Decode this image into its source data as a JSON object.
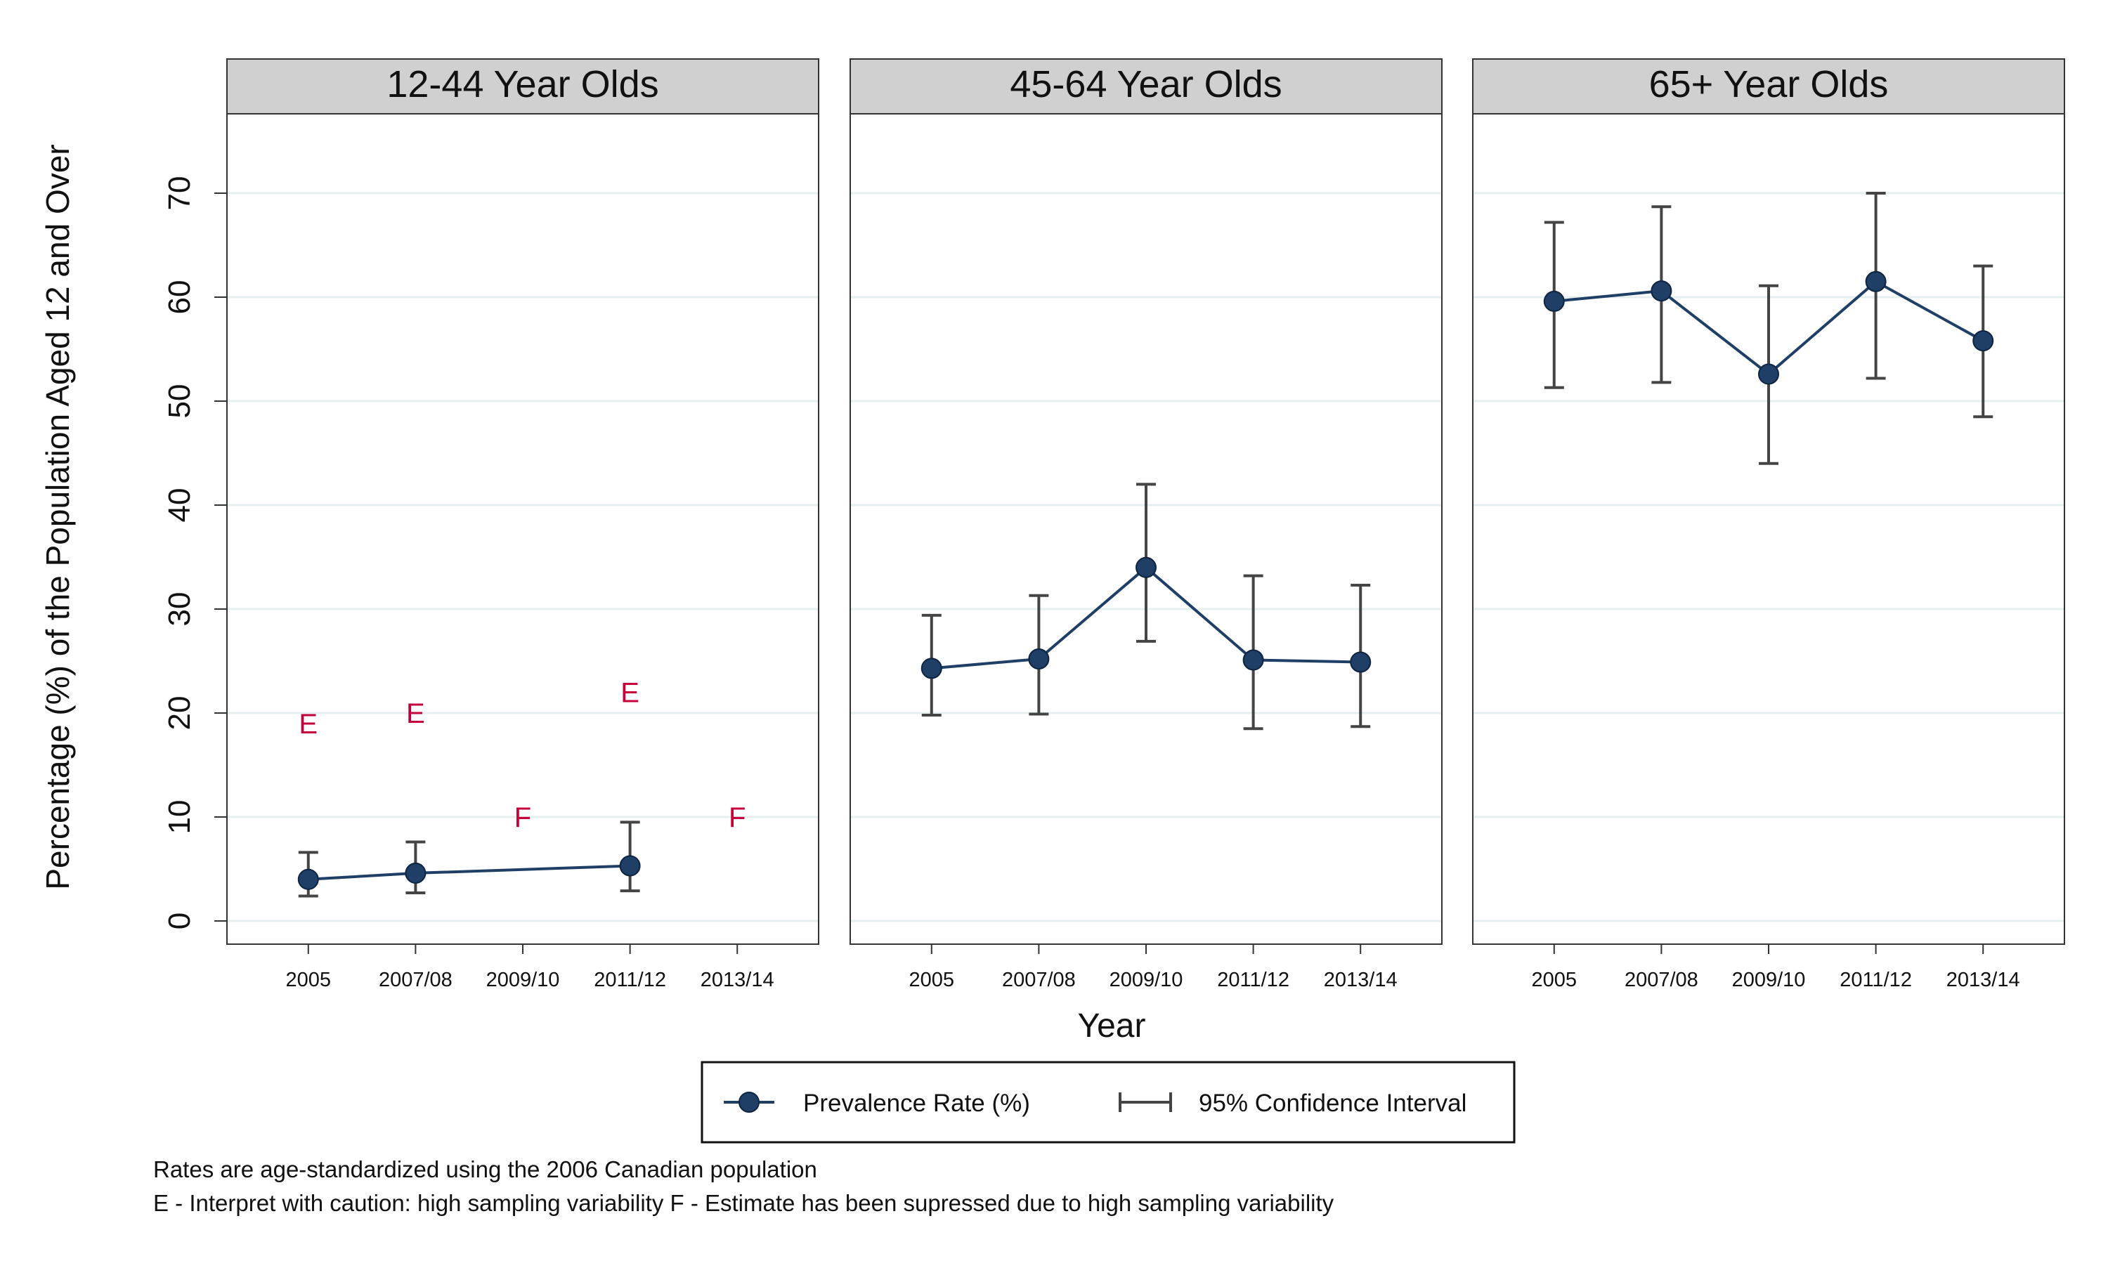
{
  "chart_data": {
    "type": "line",
    "facets": [
      {
        "title": "12-44 Year Olds",
        "categories": [
          "2005",
          "2007/08",
          "2009/10",
          "2011/12",
          "2013/14"
        ],
        "values": [
          4.0,
          4.6,
          null,
          5.3,
          null
        ],
        "ci_lower": [
          2.4,
          2.7,
          null,
          2.9,
          null
        ],
        "ci_upper": [
          6.6,
          7.6,
          null,
          9.5,
          null
        ],
        "flags": [
          "E",
          "E",
          "F",
          "E",
          "F"
        ],
        "flag_y": [
          19,
          20,
          10,
          22,
          10
        ]
      },
      {
        "title": "45-64 Year Olds",
        "categories": [
          "2005",
          "2007/08",
          "2009/10",
          "2011/12",
          "2013/14"
        ],
        "values": [
          24.3,
          25.2,
          34.0,
          25.1,
          24.9
        ],
        "ci_lower": [
          19.8,
          19.9,
          26.9,
          18.5,
          18.7
        ],
        "ci_upper": [
          29.4,
          31.3,
          42.0,
          33.2,
          32.3
        ],
        "flags": [
          "",
          "",
          "",
          "",
          ""
        ],
        "flag_y": [
          null,
          null,
          null,
          null,
          null
        ]
      },
      {
        "title": "65+ Year Olds",
        "categories": [
          "2005",
          "2007/08",
          "2009/10",
          "2011/12",
          "2013/14"
        ],
        "values": [
          59.6,
          60.6,
          52.6,
          61.5,
          55.8
        ],
        "ci_lower": [
          51.3,
          51.8,
          44.0,
          52.2,
          48.5
        ],
        "ci_upper": [
          67.2,
          68.7,
          61.1,
          70.0,
          63.0
        ],
        "flags": [
          "",
          "",
          "",
          "",
          ""
        ],
        "flag_y": [
          null,
          null,
          null,
          null,
          null
        ]
      }
    ],
    "xlabel": "Year",
    "ylabel": "Percentage (%) of the Population Aged 12 and Over",
    "ylim": [
      0,
      77
    ],
    "yticks": [
      0,
      10,
      20,
      30,
      40,
      50,
      60,
      70
    ],
    "grid": true,
    "legend": {
      "placement": "bottom",
      "entries": [
        {
          "label": "Prevalence Rate (%)",
          "kind": "marker-line"
        },
        {
          "label": "95% Confidence Interval",
          "kind": "errorbar"
        }
      ]
    },
    "notes": [
      "Rates are age-standardized using the 2006 Canadian population",
      "E - Interpret with caution: high sampling variability F - Estimate has been supressed due to high sampling variability"
    ],
    "colors": {
      "series": "#1f3f66",
      "errorbar": "#444444",
      "flag": "#c4003a",
      "strip": "#d0d0d0",
      "grid": "#e6efef"
    }
  }
}
